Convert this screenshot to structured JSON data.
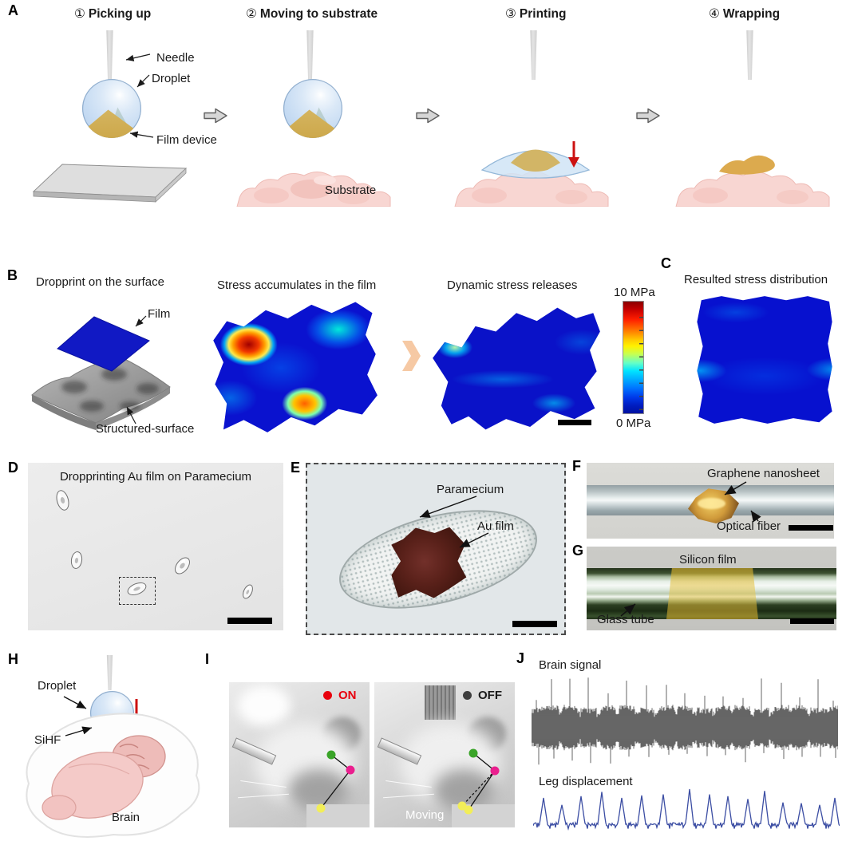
{
  "panels": {
    "A": {
      "label": "A",
      "steps": [
        {
          "number": "①",
          "title": "Picking up"
        },
        {
          "number": "②",
          "title": "Moving to substrate"
        },
        {
          "number": "③",
          "title": "Printing"
        },
        {
          "number": "④",
          "title": "Wrapping"
        }
      ],
      "annotations": {
        "needle": "Needle",
        "droplet": "Droplet",
        "film_device": "Film device",
        "substrate": "Substrate"
      }
    },
    "B": {
      "label": "B",
      "caption_left": "Dropprint on the surface",
      "caption_mid": "Stress accumulates in the film",
      "caption_right": "Dynamic stress releases",
      "film_label": "Film",
      "surface_label": "Structured-surface",
      "colorbar": {
        "top": "10 MPa",
        "bottom": "0 MPa"
      }
    },
    "C": {
      "label": "C",
      "caption": "Resulted stress distribution"
    },
    "D": {
      "label": "D",
      "caption": "Dropprinting Au film on Paramecium"
    },
    "E": {
      "label": "E",
      "paramecium_label": "Paramecium",
      "au_film_label": "Au film"
    },
    "F": {
      "label": "F",
      "graphene_label": "Graphene nanosheet",
      "fiber_label": "Optical fiber"
    },
    "G": {
      "label": "G",
      "silicon_label": "Silicon film",
      "tube_label": "Glass tube"
    },
    "H": {
      "label": "H",
      "droplet_label": "Droplet",
      "sihf_label": "SiHF",
      "brain_label": "Brain"
    },
    "I": {
      "label": "I",
      "on_label": "ON",
      "off_label": "OFF",
      "moving_label": "Moving"
    },
    "J": {
      "label": "J",
      "trace1_label": "Brain signal",
      "trace2_label": "Leg displacement",
      "brain_spikes": [
        0.015,
        0.065,
        0.125,
        0.185,
        0.25,
        0.31,
        0.375,
        0.44,
        0.5,
        0.565,
        0.625,
        0.69,
        0.75,
        0.815,
        0.875,
        0.935,
        0.985
      ],
      "leg_peaks": [
        {
          "x": 0.035,
          "h": 0.75
        },
        {
          "x": 0.095,
          "h": 0.55
        },
        {
          "x": 0.155,
          "h": 0.8
        },
        {
          "x": 0.225,
          "h": 0.92
        },
        {
          "x": 0.29,
          "h": 0.75
        },
        {
          "x": 0.355,
          "h": 0.82
        },
        {
          "x": 0.425,
          "h": 0.85
        },
        {
          "x": 0.51,
          "h": 1.0
        },
        {
          "x": 0.575,
          "h": 0.85
        },
        {
          "x": 0.635,
          "h": 0.8
        },
        {
          "x": 0.7,
          "h": 0.72
        },
        {
          "x": 0.755,
          "h": 0.95
        },
        {
          "x": 0.815,
          "h": 0.62
        },
        {
          "x": 0.875,
          "h": 0.6
        },
        {
          "x": 0.935,
          "h": 0.55
        },
        {
          "x": 0.985,
          "h": 0.75
        }
      ]
    }
  },
  "colors": {
    "on_red": "#e8000d",
    "off_dark": "#3f3f3f",
    "marker_green": "#3aa428",
    "marker_magenta": "#ea1f8e",
    "marker_yellow": "#f2ee58",
    "brain_trace": "#3f3f3f",
    "leg_trace": "#3b4da3",
    "film_blue": "#1119c4",
    "stress_base_blue": "#0a12cf",
    "chevron_peach": "#f6c9a4",
    "red_arrow": "#cc1111",
    "colorbar_top": "#8a0000",
    "colorbar_bottom": "#0012a0"
  },
  "chart_data": {
    "type": "line",
    "title": "Panel J physiological traces",
    "series": [
      {
        "name": "Brain signal",
        "description": "dense dark neural recording band with 17 periodic large spikes (up and down)"
      },
      {
        "name": "Leg displacement",
        "description": "blue trace with 16 periodic sharp peaks over a noisy baseline"
      }
    ],
    "x": "time (unlabeled)",
    "grid": false,
    "colorbar_range_MPa": [
      0,
      10
    ]
  }
}
